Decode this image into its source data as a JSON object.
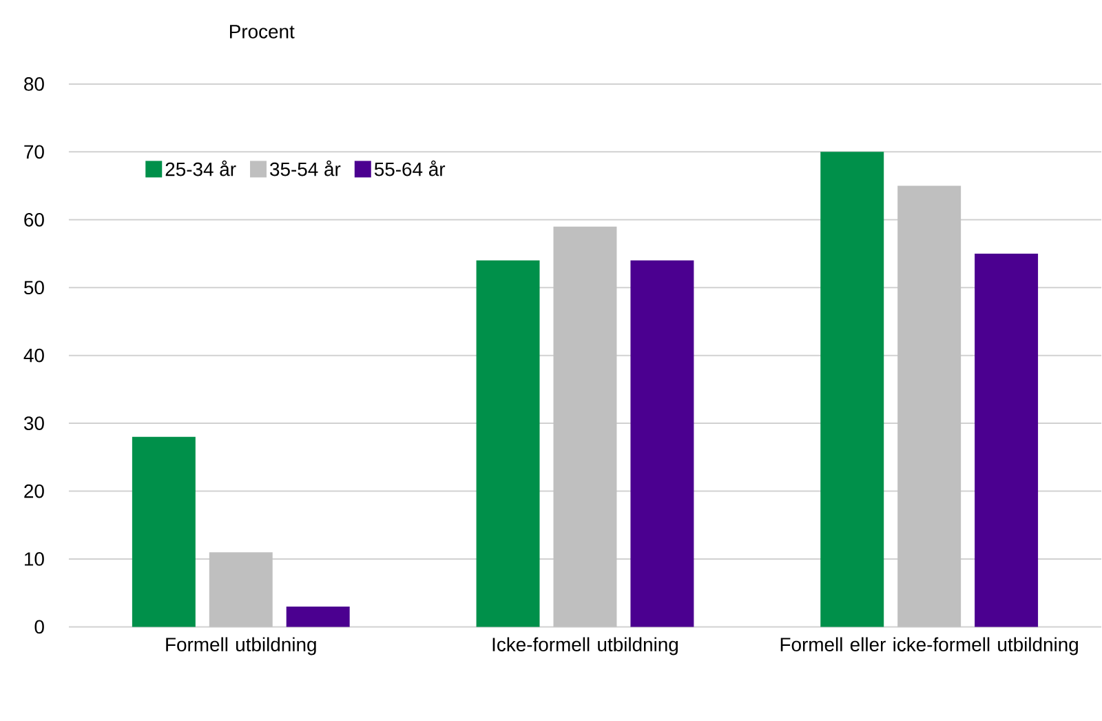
{
  "chart_data": {
    "type": "bar",
    "ylabel": "Procent",
    "categories": [
      "Formell utbildning",
      "Icke-formell utbildning",
      "Formell eller icke-formell utbildning"
    ],
    "series": [
      {
        "name": "25-34 år",
        "color": "#00904a",
        "values": [
          28,
          54,
          70
        ]
      },
      {
        "name": "35-54 år",
        "color": "#bfbfbf",
        "values": [
          11,
          59,
          65
        ]
      },
      {
        "name": "55-64 år",
        "color": "#4b0090",
        "values": [
          3,
          54,
          55
        ]
      }
    ],
    "ylim": [
      0,
      80
    ],
    "yticks": [
      0,
      10,
      20,
      30,
      40,
      50,
      60,
      70,
      80
    ],
    "grid": "y",
    "legend": "top left"
  }
}
